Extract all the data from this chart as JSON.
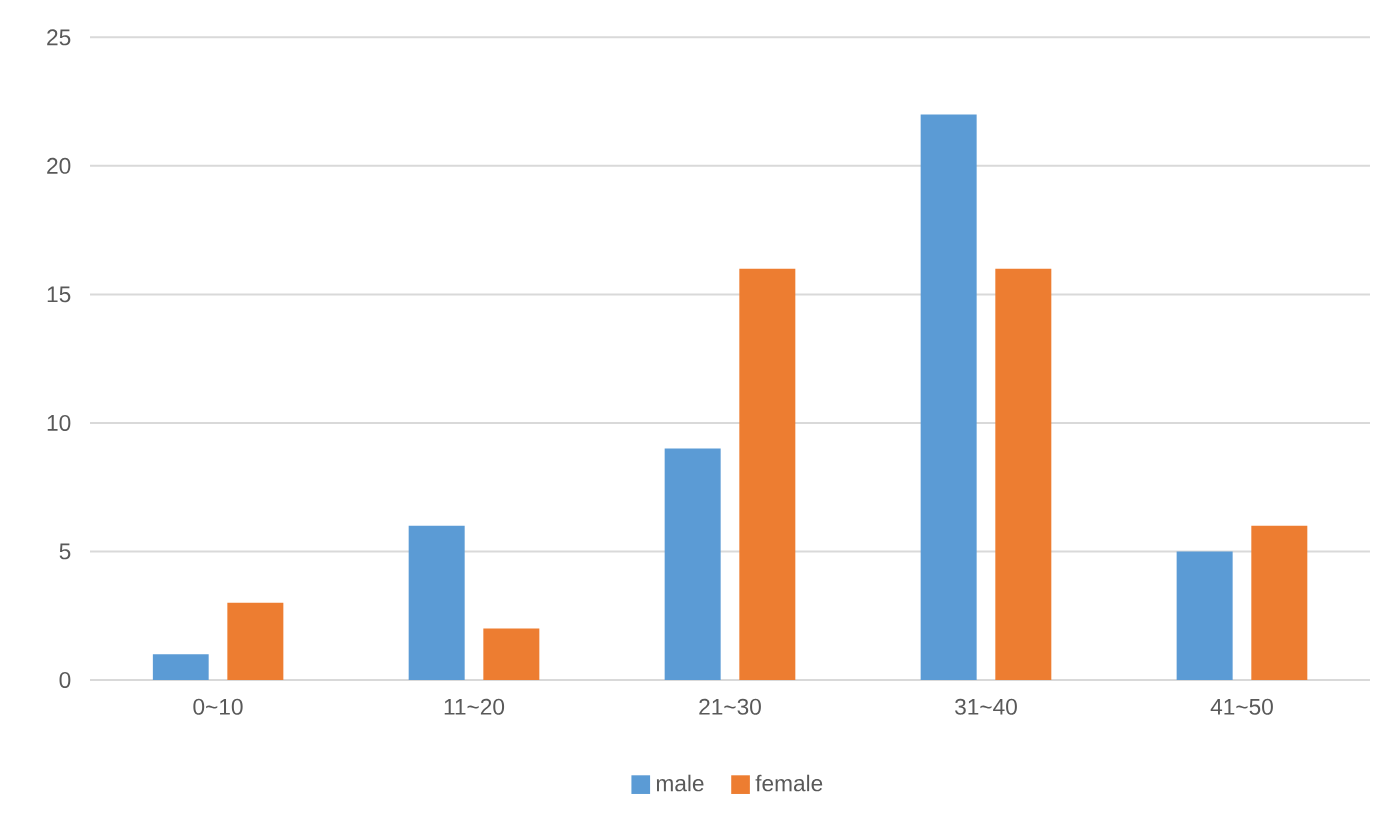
{
  "chart_data": {
    "type": "bar",
    "categories": [
      "0~10",
      "11~20",
      "21~30",
      "31~40",
      "41~50"
    ],
    "series": [
      {
        "name": "male",
        "color": "#5b9bd5",
        "values": [
          1,
          6,
          9,
          22,
          5
        ]
      },
      {
        "name": "female",
        "color": "#ed7d31",
        "values": [
          3,
          2,
          16,
          16,
          6
        ]
      }
    ],
    "ylim": [
      0,
      25
    ],
    "yticks": [
      0,
      5,
      10,
      15,
      20,
      25
    ],
    "grid": "y",
    "legend": "bottom"
  }
}
